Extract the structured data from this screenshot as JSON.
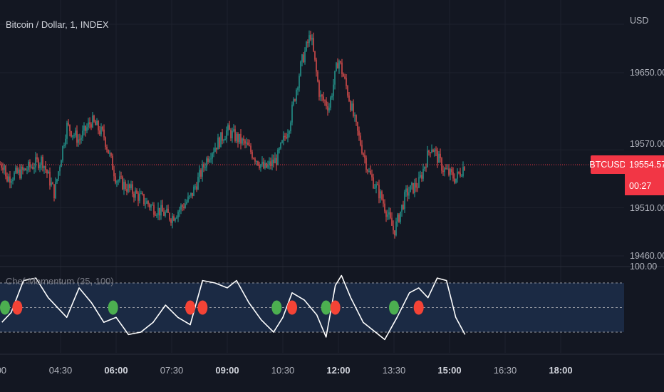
{
  "chart_title": "Bitcoin / Dollar, 1, INDEX",
  "currency": "USD",
  "indicator_title": "Chef Momentum (35, 100)",
  "ticker_badge": "BTCUSD",
  "last_price": "19554.57",
  "countdown": "00:27",
  "colors": {
    "background": "#131722",
    "up": "#26a69a",
    "down": "#ef5350",
    "price_line": "#f23645",
    "band_fill": "#1b2a44",
    "momentum_line": "#ffffff",
    "dot_green": "#4caf50",
    "dot_red": "#f44336"
  },
  "chart_data": [
    {
      "type": "candlestick",
      "title": "Bitcoin / Dollar, 1, INDEX",
      "y_unit": "USD",
      "y_ticks": [
        19460.0,
        19510.0,
        19570.0,
        19650.0
      ],
      "y_tick_labels": [
        "19460.00",
        "19510.00",
        "19570.00",
        "19650.00"
      ],
      "x_ticks": [
        "04:30",
        "06:00",
        "07:30",
        "09:00",
        "10:30",
        "12:00",
        "13:30",
        "15:00",
        "16:30",
        "18:00"
      ],
      "x_tick_bold": [
        false,
        true,
        false,
        true,
        false,
        true,
        false,
        true,
        false,
        true
      ],
      "last_price": 19554.57,
      "approx_close_path": [
        {
          "t": "03:00",
          "p": 19540
        },
        {
          "t": "03:30",
          "p": 19548
        },
        {
          "t": "04:00",
          "p": 19560
        },
        {
          "t": "04:20",
          "p": 19525
        },
        {
          "t": "04:40",
          "p": 19595
        },
        {
          "t": "05:00",
          "p": 19580
        },
        {
          "t": "05:20",
          "p": 19600
        },
        {
          "t": "05:40",
          "p": 19585
        },
        {
          "t": "06:00",
          "p": 19540
        },
        {
          "t": "06:30",
          "p": 19525
        },
        {
          "t": "07:00",
          "p": 19510
        },
        {
          "t": "07:30",
          "p": 19500
        },
        {
          "t": "08:00",
          "p": 19520
        },
        {
          "t": "08:30",
          "p": 19565
        },
        {
          "t": "09:00",
          "p": 19590
        },
        {
          "t": "09:30",
          "p": 19575
        },
        {
          "t": "10:00",
          "p": 19550
        },
        {
          "t": "10:20",
          "p": 19560
        },
        {
          "t": "10:40",
          "p": 19595
        },
        {
          "t": "11:00",
          "p": 19660
        },
        {
          "t": "11:15",
          "p": 19690
        },
        {
          "t": "11:30",
          "p": 19625
        },
        {
          "t": "11:45",
          "p": 19615
        },
        {
          "t": "12:00",
          "p": 19665
        },
        {
          "t": "12:15",
          "p": 19630
        },
        {
          "t": "12:30",
          "p": 19590
        },
        {
          "t": "12:50",
          "p": 19545
        },
        {
          "t": "13:10",
          "p": 19520
        },
        {
          "t": "13:30",
          "p": 19485
        },
        {
          "t": "13:50",
          "p": 19525
        },
        {
          "t": "14:10",
          "p": 19535
        },
        {
          "t": "14:30",
          "p": 19575
        },
        {
          "t": "14:50",
          "p": 19550
        },
        {
          "t": "15:10",
          "p": 19540
        },
        {
          "t": "15:25",
          "p": 19555
        }
      ]
    },
    {
      "type": "line",
      "title": "Chef Momentum (35, 100)",
      "y_tick_labels": [
        "100.00"
      ],
      "band": [
        -100,
        100
      ],
      "dashed_levels": [
        -100,
        0,
        100
      ],
      "signals": [
        {
          "t": "03:00",
          "signal": "buy"
        },
        {
          "t": "03:20",
          "signal": "sell"
        },
        {
          "t": "05:55",
          "signal": "buy"
        },
        {
          "t": "08:00",
          "signal": "sell"
        },
        {
          "t": "08:20",
          "signal": "sell"
        },
        {
          "t": "10:20",
          "signal": "buy"
        },
        {
          "t": "10:45",
          "signal": "sell"
        },
        {
          "t": "11:40",
          "signal": "buy"
        },
        {
          "t": "11:55",
          "signal": "sell"
        },
        {
          "t": "13:30",
          "signal": "buy"
        },
        {
          "t": "14:10",
          "signal": "sell"
        }
      ]
    }
  ]
}
